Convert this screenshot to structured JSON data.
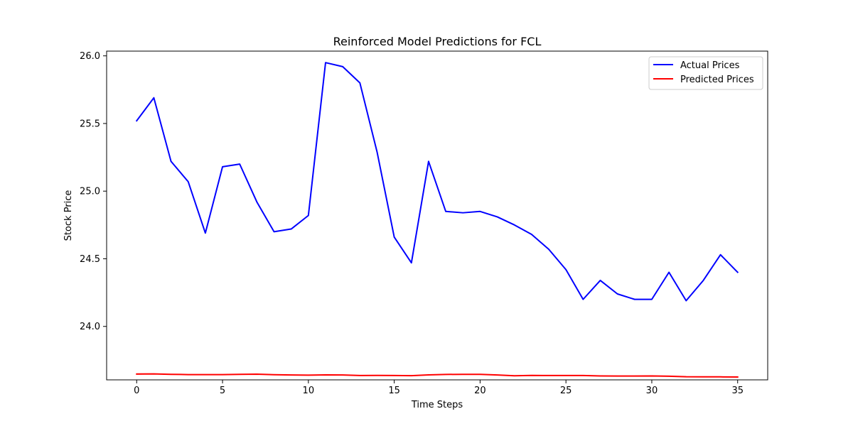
{
  "chart_data": {
    "type": "line",
    "title": "Reinforced Model Predictions for FCL",
    "xlabel": "Time Steps",
    "ylabel": "Stock Price",
    "xlim": [
      -1.75,
      36.75
    ],
    "ylim": [
      23.605,
      26.035
    ],
    "xticks": [
      0,
      5,
      10,
      15,
      20,
      25,
      30,
      35
    ],
    "yticks": [
      24.0,
      24.5,
      25.0,
      25.5,
      26.0
    ],
    "ytick_labels": [
      "24.0",
      "24.5",
      "25.0",
      "25.5",
      "26.0"
    ],
    "grid": false,
    "legend_position": "upper right",
    "x": [
      0,
      1,
      2,
      3,
      4,
      5,
      6,
      7,
      8,
      9,
      10,
      11,
      12,
      13,
      14,
      15,
      16,
      17,
      18,
      19,
      20,
      21,
      22,
      23,
      24,
      25,
      26,
      27,
      28,
      29,
      30,
      31,
      32,
      33,
      34,
      35
    ],
    "series": [
      {
        "name": "Actual Prices",
        "color": "#0000ff",
        "values": [
          25.52,
          25.69,
          25.22,
          25.07,
          24.69,
          25.18,
          25.2,
          24.92,
          24.7,
          24.72,
          24.82,
          25.95,
          25.92,
          25.8,
          25.29,
          24.66,
          24.47,
          25.22,
          24.85,
          24.84,
          24.85,
          24.81,
          24.75,
          24.68,
          24.57,
          24.42,
          24.2,
          24.34,
          24.24,
          24.2,
          24.2,
          24.4,
          24.19,
          24.34,
          24.53,
          24.4
        ]
      },
      {
        "name": "Predicted Prices",
        "color": "#ff0000",
        "values": [
          23.648,
          23.649,
          23.646,
          23.644,
          23.644,
          23.644,
          23.646,
          23.647,
          23.643,
          23.641,
          23.64,
          23.642,
          23.641,
          23.637,
          23.638,
          23.637,
          23.636,
          23.642,
          23.645,
          23.646,
          23.646,
          23.641,
          23.635,
          23.638,
          23.637,
          23.637,
          23.637,
          23.634,
          23.633,
          23.633,
          23.634,
          23.632,
          23.628,
          23.627,
          23.627,
          23.626
        ]
      }
    ]
  }
}
